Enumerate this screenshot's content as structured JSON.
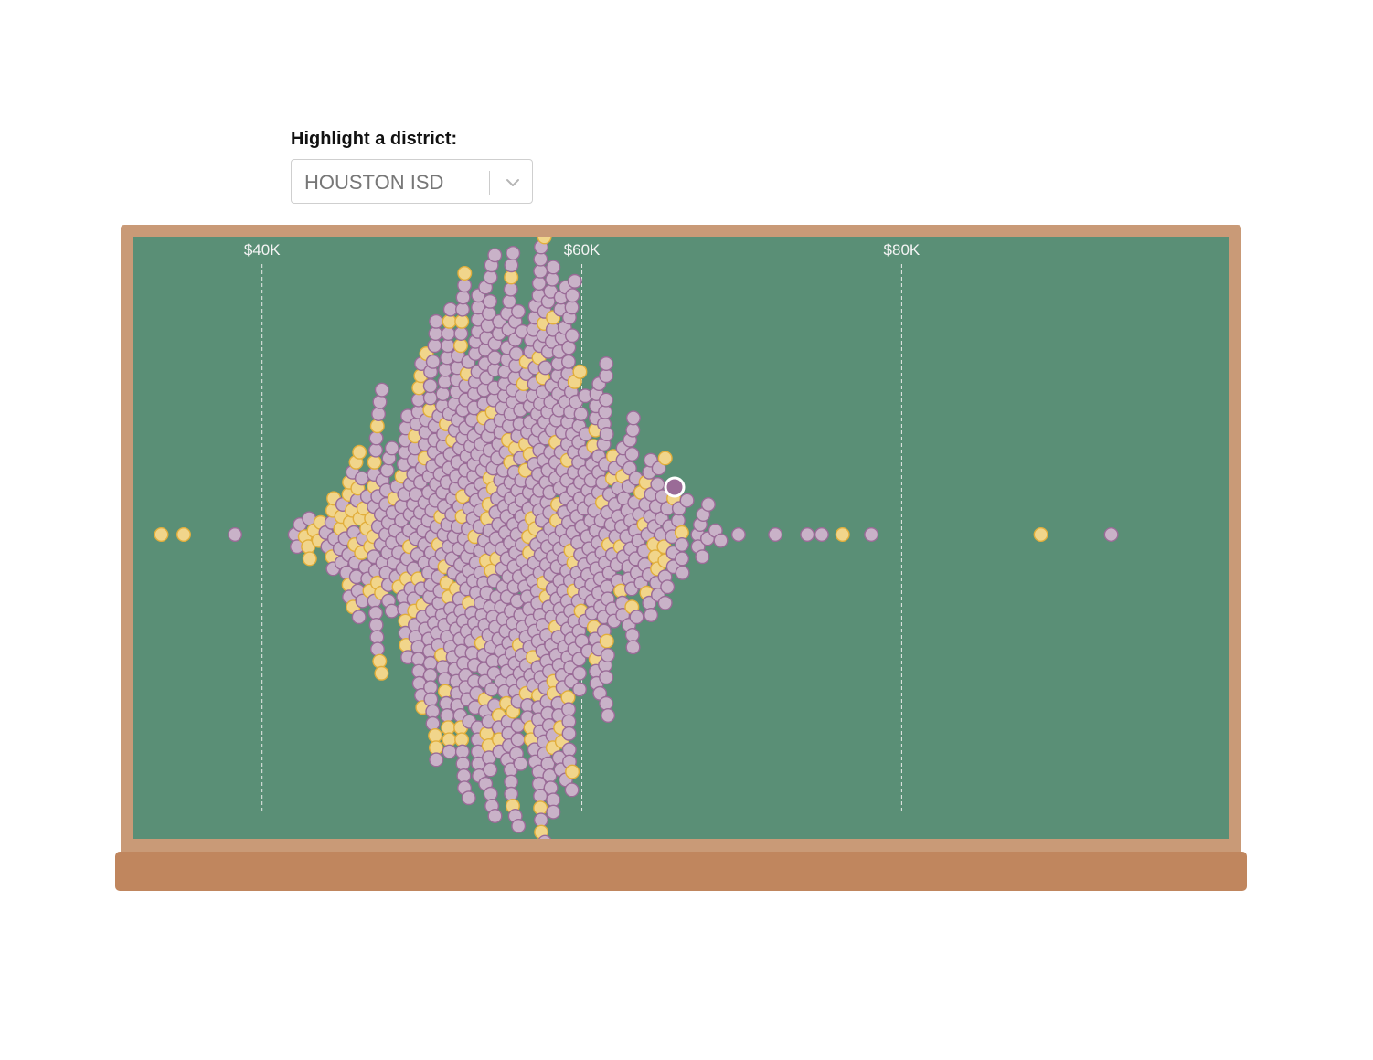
{
  "control": {
    "label": "Highlight a district:",
    "selected": "HOUSTON ISD"
  },
  "colors": {
    "board": "#5a8f76",
    "frame": "#c99a77",
    "ledge": "#c0865e",
    "dot_fill": "#c9b2c8",
    "dot_stroke": "#9a6b97",
    "highlight_fill": "#f1d58b",
    "highlight_stroke": "#e2ae3b",
    "selected_fill": "#9a6b97",
    "selected_stroke": "#ffffff"
  },
  "chart_data": {
    "type": "scatter",
    "subtype": "beeswarm",
    "title": "",
    "xlabel": "",
    "ylabel": "",
    "x_ticks": [
      {
        "value": 40000,
        "label": "$40K"
      },
      {
        "value": 60000,
        "label": "$60K"
      },
      {
        "value": 80000,
        "label": "$80K"
      }
    ],
    "x_domain": [
      31900,
      100500
    ],
    "grid": "dashed vertical lines at ticks",
    "legend": "none",
    "selected_district": {
      "name": "HOUSTON ISD",
      "x": 65800
    },
    "outliers": [
      {
        "x": 33700,
        "highlighted": true
      },
      {
        "x": 35100,
        "highlighted": true
      },
      {
        "x": 38300,
        "highlighted": false
      },
      {
        "x": 72100,
        "highlighted": false
      },
      {
        "x": 74100,
        "highlighted": false
      },
      {
        "x": 75000,
        "highlighted": false
      },
      {
        "x": 76300,
        "highlighted": true
      },
      {
        "x": 78100,
        "highlighted": false
      },
      {
        "x": 88700,
        "highlighted": true
      },
      {
        "x": 93100,
        "highlighted": false
      }
    ],
    "distribution": {
      "description": "about 1,000 school districts by average teacher salary",
      "approx_count": 1000,
      "range": [
        40300,
        71200
      ],
      "median": 55000,
      "highlight_share_low_end": 0.45,
      "highlight_share_overall": 0.15
    }
  }
}
